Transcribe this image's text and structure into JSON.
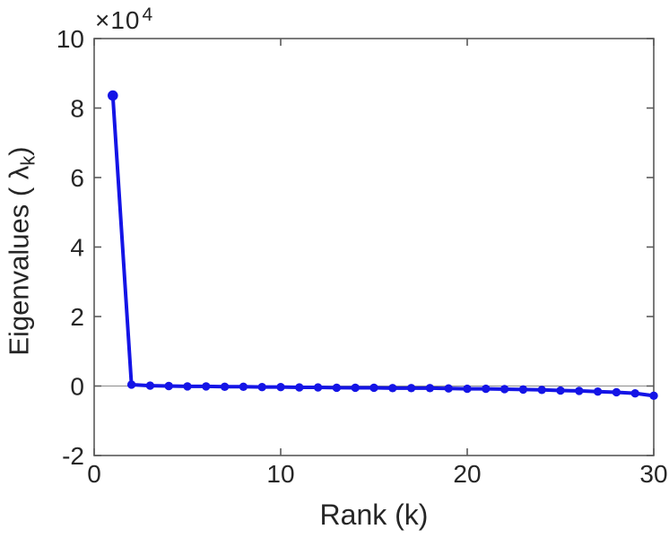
{
  "chart_data": {
    "type": "line",
    "title": "",
    "xlabel": "Rank (k)",
    "ylabel": "Eigenvalues ( λk)",
    "ylabel_parts": {
      "prefix": "Eigenvalues ( λ",
      "sub": "k",
      "suffix": ")"
    },
    "y_scale_label": {
      "base": "×10",
      "power": "4"
    },
    "unit_multiplier": 10000,
    "x": [
      1,
      2,
      3,
      4,
      5,
      6,
      7,
      8,
      9,
      10,
      11,
      12,
      13,
      14,
      15,
      16,
      17,
      18,
      19,
      20,
      21,
      22,
      23,
      24,
      25,
      26,
      27,
      28,
      29,
      30
    ],
    "values_e4": [
      8.36,
      0.04,
      0.01,
      0.0,
      -0.01,
      -0.01,
      -0.02,
      -0.02,
      -0.03,
      -0.03,
      -0.04,
      -0.04,
      -0.05,
      -0.05,
      -0.05,
      -0.06,
      -0.06,
      -0.06,
      -0.07,
      -0.08,
      -0.08,
      -0.09,
      -0.1,
      -0.11,
      -0.13,
      -0.14,
      -0.16,
      -0.18,
      -0.21,
      -0.28
    ],
    "xlim": [
      0,
      30
    ],
    "ylim": [
      -2,
      10
    ],
    "x_ticks": [
      0,
      10,
      20,
      30
    ],
    "y_ticks": [
      -2,
      0,
      2,
      4,
      6,
      8,
      10
    ],
    "grid": false,
    "zero_line": true,
    "legend": "none",
    "marker": "filled-circle",
    "colors": {
      "line": "#1414e6",
      "axis": "#595959",
      "zero_line": "#8c8c8c",
      "text": "#262626",
      "background": "#ffffff"
    }
  }
}
